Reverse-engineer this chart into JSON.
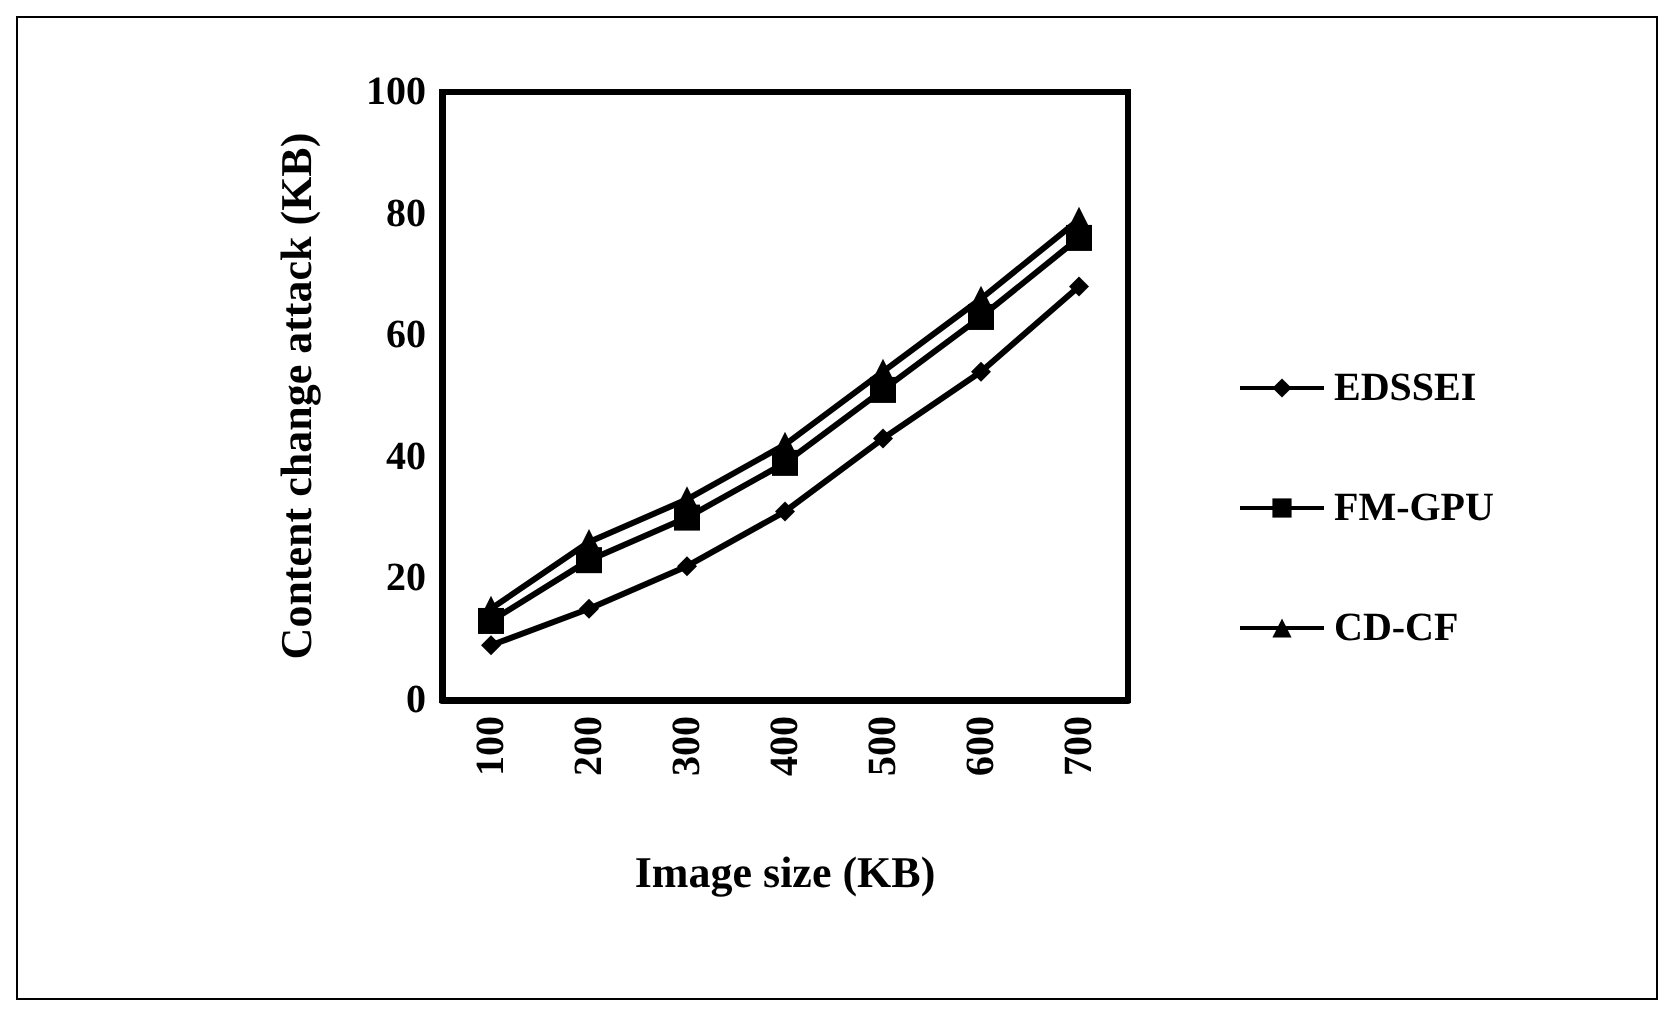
{
  "chart_data": {
    "type": "line",
    "xlabel": "Image size (KB)",
    "ylabel": "Content change attack (KB)",
    "categories": [
      "100",
      "200",
      "300",
      "400",
      "500",
      "600",
      "700"
    ],
    "series": [
      {
        "name": "EDSSEI",
        "color": "#000000",
        "marker": "diamond",
        "values": [
          9,
          15,
          22,
          31,
          43,
          54,
          68
        ]
      },
      {
        "name": "FM-GPU",
        "color": "#000000",
        "marker": "square",
        "values": [
          13,
          23,
          30,
          39,
          51,
          63,
          76
        ]
      },
      {
        "name": "CD-CF",
        "color": "#000000",
        "marker": "triangle",
        "values": [
          15,
          26,
          33,
          42,
          54,
          66,
          79
        ]
      }
    ],
    "ylim": [
      0,
      100
    ],
    "yticks": [
      0,
      20,
      40,
      60,
      80,
      100
    ],
    "grid": false,
    "legend": "right",
    "line_style": "solid"
  }
}
